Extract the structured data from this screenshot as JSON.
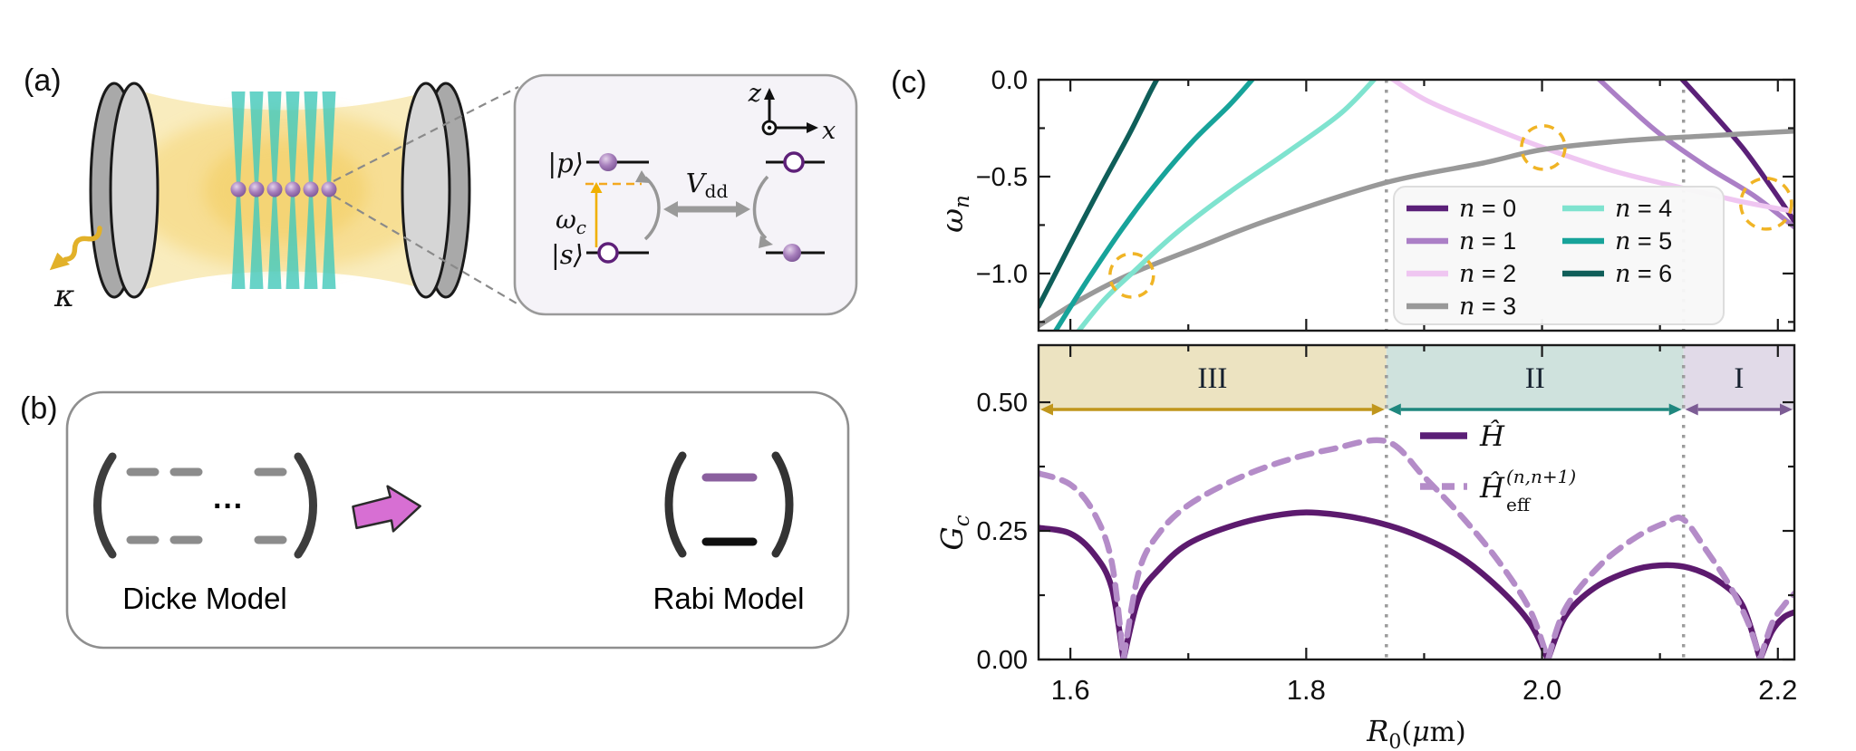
{
  "panel_a": {
    "label": "(a)",
    "kappa": "κ",
    "inset": {
      "state_p": "|p⟩",
      "state_s": "|s⟩",
      "omega_c": {
        "base": "ω",
        "sub": "c"
      },
      "v_dd": {
        "base": "V",
        "sub": "dd"
      },
      "axis_z": "z",
      "axis_x": "x"
    }
  },
  "panel_b": {
    "label": "(b)",
    "dicke_label": "Dicke Model",
    "rabi_label": "Rabi Model",
    "dots": "···",
    "arrow_color": "#d76fd3"
  },
  "panel_c": {
    "label": "(c)"
  },
  "chart_data": [
    {
      "type": "line",
      "title": "",
      "ylabel": "ω_n",
      "ylabel_parts": {
        "base": "ω",
        "sub": "n"
      },
      "xlim": [
        1.573,
        2.214
      ],
      "ylim": [
        -1.295,
        0
      ],
      "grid": false,
      "legend_position": "lower-right-inside",
      "yticks": {
        "major": [
          {
            "v": 0,
            "label": "0.0"
          },
          {
            "v": -0.5,
            "label": "−0.5"
          },
          {
            "v": -1.0,
            "label": "−1.0"
          }
        ],
        "minor": [
          -0.25,
          -0.75,
          -1.25
        ]
      },
      "xticks": {
        "major": [
          1.6,
          1.8,
          2.0,
          2.2
        ],
        "minor": [
          1.7,
          1.9,
          2.1
        ],
        "labels": []
      },
      "series": [
        {
          "name": "n = 0",
          "color": "#5b2078",
          "points": [
            [
              2.11,
              0.06
            ],
            [
              2.14,
              -0.14
            ],
            [
              2.17,
              -0.35
            ],
            [
              2.195,
              -0.56
            ],
            [
              2.214,
              -0.73
            ]
          ]
        },
        {
          "name": "n = 1",
          "color": "#ab7fc6",
          "points": [
            [
              2.04,
              0.05
            ],
            [
              2.07,
              -0.12
            ],
            [
              2.1,
              -0.28
            ],
            [
              2.14,
              -0.45
            ],
            [
              2.18,
              -0.6
            ],
            [
              2.214,
              -0.76
            ]
          ]
        },
        {
          "name": "n = 2",
          "color": "#efc6f1",
          "points": [
            [
              1.862,
              0.05
            ],
            [
              1.9,
              -0.1
            ],
            [
              1.95,
              -0.23
            ],
            [
              2.001,
              -0.35
            ],
            [
              2.06,
              -0.47
            ],
            [
              2.12,
              -0.56
            ],
            [
              2.17,
              -0.63
            ],
            [
              2.214,
              -0.68
            ]
          ]
        },
        {
          "name": "n = 3",
          "color": "#999999",
          "points": [
            [
              1.573,
              -1.27
            ],
            [
              1.61,
              -1.13
            ],
            [
              1.652,
              -1.0
            ],
            [
              1.71,
              -0.86
            ],
            [
              1.77,
              -0.72
            ],
            [
              1.868,
              -0.53
            ],
            [
              1.95,
              -0.43
            ],
            [
              2.001,
              -0.36
            ],
            [
              2.07,
              -0.315
            ],
            [
              2.14,
              -0.29
            ],
            [
              2.214,
              -0.265
            ]
          ]
        },
        {
          "name": "n = 4",
          "color": "#7fe3cf",
          "points": [
            [
              1.604,
              -1.32
            ],
            [
              1.628,
              -1.14
            ],
            [
              1.652,
              -1.0
            ],
            [
              1.69,
              -0.79
            ],
            [
              1.735,
              -0.58
            ],
            [
              1.785,
              -0.37
            ],
            [
              1.83,
              -0.17
            ],
            [
              1.862,
              0.03
            ]
          ]
        },
        {
          "name": "n = 5",
          "color": "#17a39a",
          "points": [
            [
              1.585,
              -1.32
            ],
            [
              1.615,
              -1.03
            ],
            [
              1.645,
              -0.76
            ],
            [
              1.675,
              -0.52
            ],
            [
              1.705,
              -0.31
            ],
            [
              1.735,
              -0.13
            ],
            [
              1.757,
              0.02
            ]
          ]
        },
        {
          "name": "n = 6",
          "color": "#0f5e59",
          "points": [
            [
              1.573,
              -1.17
            ],
            [
              1.6,
              -0.85
            ],
            [
              1.625,
              -0.56
            ],
            [
              1.65,
              -0.28
            ],
            [
              1.668,
              -0.06
            ],
            [
              1.676,
              0.03
            ]
          ]
        }
      ],
      "annotations": {
        "circles": [
          {
            "x": 1.652,
            "y": -1.01,
            "r": 24
          },
          {
            "x": 2.001,
            "y": -0.35,
            "r": 24
          },
          {
            "x": 2.19,
            "y": -0.64,
            "r": 28
          }
        ],
        "circle_color": "#f0b425",
        "vlines": [
          1.868,
          2.12
        ],
        "vline_color": "#9c9c9c"
      }
    },
    {
      "type": "line",
      "title": "",
      "xlabel": "R₀(μm)",
      "xlabel_parts": {
        "base": "R",
        "sub": "0",
        "paren_open": "(",
        "mu": "μ",
        "rest": "m)"
      },
      "ylabel": "G_c",
      "ylabel_parts": {
        "base": "G",
        "sub": "c"
      },
      "xlim": [
        1.573,
        2.214
      ],
      "ylim": [
        0,
        0.611
      ],
      "grid": false,
      "yticks": {
        "major": [
          {
            "v": 0,
            "label": "0.00"
          },
          {
            "v": 0.25,
            "label": "0.25"
          },
          {
            "v": 0.5,
            "label": "0.50"
          }
        ],
        "minor": [
          0.125,
          0.375
        ]
      },
      "xticks": {
        "major": [
          1.6,
          1.8,
          2.0,
          2.2
        ],
        "minor": [
          1.7,
          1.9,
          2.1
        ],
        "labels": [
          "1.6",
          "1.8",
          "2.0",
          "2.2"
        ]
      },
      "regions": [
        {
          "name": "III",
          "x0": 1.573,
          "x1": 1.868,
          "band": "#ece3c1",
          "arrow": "#c0961c"
        },
        {
          "name": "II",
          "x0": 1.868,
          "x1": 2.12,
          "band": "#cfe2dd",
          "arrow": "#1f877e"
        },
        {
          "name": "I",
          "x0": 2.12,
          "x1": 2.214,
          "band": "#e1dae8",
          "arrow": "#7c5c94"
        }
      ],
      "legend": [
        {
          "label": "Ĥ",
          "style": "solid",
          "color": "#5b1f77"
        },
        {
          "label": "Ĥ",
          "sup": "(n,n+1)",
          "sub": "eff",
          "style": "dashed",
          "color": "#b48cc8"
        }
      ],
      "series": [
        {
          "name": "H-full",
          "style": "solid",
          "color": "#5c1a6e",
          "points": [
            [
              1.573,
              0.256
            ],
            [
              1.6,
              0.245
            ],
            [
              1.62,
              0.205
            ],
            [
              1.635,
              0.14
            ],
            [
              1.645,
              0
            ],
            [
              1.658,
              0.12
            ],
            [
              1.675,
              0.175
            ],
            [
              1.7,
              0.225
            ],
            [
              1.74,
              0.262
            ],
            [
              1.78,
              0.282
            ],
            [
              1.81,
              0.285
            ],
            [
              1.85,
              0.272
            ],
            [
              1.89,
              0.245
            ],
            [
              1.93,
              0.2
            ],
            [
              1.965,
              0.135
            ],
            [
              1.99,
              0.07
            ],
            [
              2.005,
              0
            ],
            [
              2.02,
              0.085
            ],
            [
              2.045,
              0.14
            ],
            [
              2.075,
              0.172
            ],
            [
              2.1,
              0.183
            ],
            [
              2.125,
              0.178
            ],
            [
              2.15,
              0.152
            ],
            [
              2.17,
              0.105
            ],
            [
              2.185,
              0
            ],
            [
              2.195,
              0.055
            ],
            [
              2.205,
              0.082
            ],
            [
              2.214,
              0.092
            ]
          ]
        },
        {
          "name": "H-eff",
          "style": "dashed",
          "color": "#b48cc8",
          "points": [
            [
              1.573,
              0.362
            ],
            [
              1.6,
              0.34
            ],
            [
              1.62,
              0.285
            ],
            [
              1.635,
              0.19
            ],
            [
              1.645,
              0
            ],
            [
              1.658,
              0.17
            ],
            [
              1.675,
              0.245
            ],
            [
              1.7,
              0.3
            ],
            [
              1.74,
              0.35
            ],
            [
              1.78,
              0.385
            ],
            [
              1.82,
              0.408
            ],
            [
              1.868,
              0.424
            ],
            [
              1.9,
              0.355
            ],
            [
              1.935,
              0.27
            ],
            [
              1.965,
              0.185
            ],
            [
              1.99,
              0.095
            ],
            [
              2.005,
              0
            ],
            [
              2.02,
              0.1
            ],
            [
              2.05,
              0.185
            ],
            [
              2.08,
              0.238
            ],
            [
              2.105,
              0.266
            ],
            [
              2.12,
              0.272
            ],
            [
              2.14,
              0.21
            ],
            [
              2.16,
              0.14
            ],
            [
              2.175,
              0.07
            ],
            [
              2.185,
              0
            ],
            [
              2.195,
              0.07
            ],
            [
              2.205,
              0.105
            ],
            [
              2.214,
              0.128
            ]
          ]
        }
      ]
    }
  ]
}
